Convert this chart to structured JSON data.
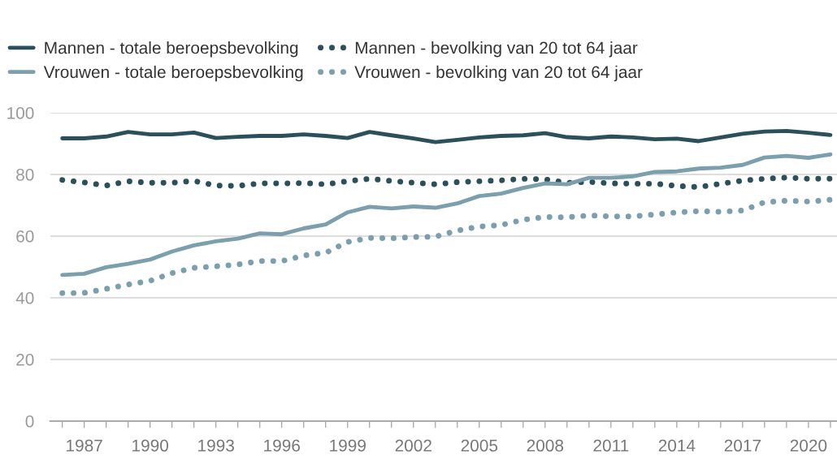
{
  "chart_data": {
    "type": "line",
    "x": [
      1986,
      1987,
      1988,
      1989,
      1990,
      1991,
      1992,
      1993,
      1994,
      1995,
      1996,
      1997,
      1998,
      1999,
      2000,
      2001,
      2002,
      2003,
      2004,
      2005,
      2006,
      2007,
      2008,
      2009,
      2010,
      2011,
      2012,
      2013,
      2014,
      2015,
      2016,
      2017,
      2018,
      2019,
      2020,
      2021
    ],
    "series": [
      {
        "name": "Mannen - totale beroepsbevolking",
        "color": "#2c4f5c",
        "line_style": "solid",
        "values": [
          91.7,
          91.7,
          92.3,
          93.8,
          93.0,
          93.0,
          93.6,
          91.8,
          92.2,
          92.5,
          92.5,
          93.0,
          92.5,
          91.8,
          93.8,
          92.7,
          91.7,
          90.5,
          91.2,
          92.0,
          92.5,
          92.7,
          93.4,
          92.1,
          91.7,
          92.3,
          92.0,
          91.4,
          91.6,
          90.8,
          92.0,
          93.2,
          93.9,
          94.1,
          93.5,
          92.8
        ]
      },
      {
        "name": "Mannen - bevolking van 20 tot 64 jaar",
        "color": "#2c4f5c",
        "line_style": "dotted",
        "values": [
          78.2,
          77.4,
          76.4,
          77.8,
          77.3,
          77.3,
          77.9,
          76.4,
          76.3,
          77.1,
          77.1,
          77.2,
          76.8,
          77.8,
          78.6,
          77.9,
          77.3,
          76.8,
          77.5,
          77.8,
          78.1,
          78.6,
          78.4,
          77.3,
          77.6,
          77.1,
          77.0,
          77.0,
          76.3,
          75.9,
          77.0,
          78.0,
          78.6,
          79.0,
          78.6,
          78.6
        ]
      },
      {
        "name": "Vrouwen - totale beroepsbevolking",
        "color": "#7b9fad",
        "line_style": "solid",
        "values": [
          47.4,
          47.8,
          49.9,
          51.0,
          52.4,
          55.0,
          57.0,
          58.3,
          59.2,
          60.9,
          60.6,
          62.5,
          63.8,
          67.7,
          69.5,
          69.0,
          69.6,
          69.2,
          70.6,
          73.0,
          73.8,
          75.6,
          77.1,
          76.8,
          78.9,
          78.9,
          79.4,
          80.8,
          81.0,
          81.9,
          82.2,
          83.1,
          85.5,
          86.0,
          85.4,
          86.5
        ]
      },
      {
        "name": "Vrouwen - bevolking van 20 tot 64 jaar",
        "color": "#7b9fad",
        "line_style": "dotted",
        "values": [
          41.5,
          41.6,
          42.9,
          44.3,
          45.5,
          48.0,
          49.7,
          50.2,
          50.8,
          51.9,
          51.9,
          53.7,
          54.6,
          58.1,
          59.4,
          59.3,
          59.7,
          59.8,
          61.8,
          63.1,
          63.6,
          65.3,
          66.2,
          66.1,
          66.7,
          66.4,
          66.4,
          67.0,
          67.7,
          68.1,
          67.9,
          68.3,
          71.0,
          71.5,
          71.2,
          71.8
        ]
      }
    ],
    "xlim": [
      1985.45,
      2021.3
    ],
    "xticks": [
      {
        "value": 1986,
        "label": null
      },
      1987,
      {
        "value": 1988,
        "label": null
      },
      {
        "value": 1989,
        "label": null
      },
      1990,
      {
        "value": 1991,
        "label": null
      },
      {
        "value": 1992,
        "label": null
      },
      1993,
      {
        "value": 1994,
        "label": null
      },
      {
        "value": 1995,
        "label": null
      },
      1996,
      {
        "value": 1997,
        "label": null
      },
      {
        "value": 1998,
        "label": null
      },
      1999,
      {
        "value": 2000,
        "label": null
      },
      {
        "value": 2001,
        "label": null
      },
      2002,
      {
        "value": 2003,
        "label": null
      },
      {
        "value": 2004,
        "label": null
      },
      2005,
      {
        "value": 2006,
        "label": null
      },
      {
        "value": 2007,
        "label": null
      },
      2008,
      {
        "value": 2009,
        "label": null
      },
      {
        "value": 2010,
        "label": null
      },
      2011,
      {
        "value": 2012,
        "label": null
      },
      {
        "value": 2013,
        "label": null
      },
      2014,
      {
        "value": 2015,
        "label": null
      },
      {
        "value": 2016,
        "label": null
      },
      2017,
      {
        "value": 2018,
        "label": null
      },
      {
        "value": 2019,
        "label": null
      },
      2020,
      {
        "value": 2021,
        "label": null
      }
    ],
    "ylim": [
      0,
      100
    ],
    "yticks": [
      0,
      20,
      40,
      60,
      80,
      100
    ],
    "grid": "y",
    "legend": "top",
    "marker": "none"
  }
}
